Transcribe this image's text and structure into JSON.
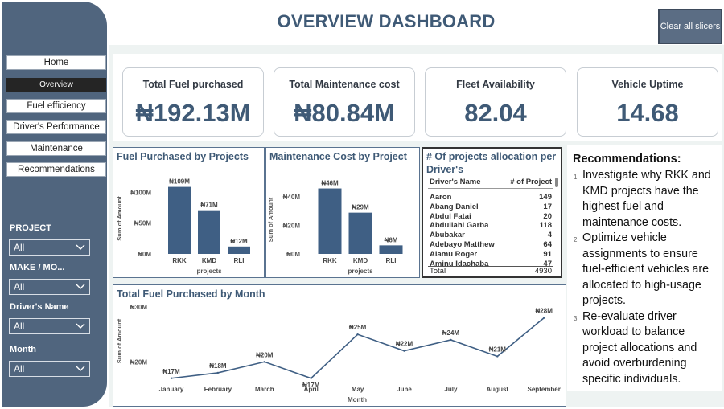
{
  "header": {
    "title": "OVERVIEW DASHBOARD",
    "clear_label": "Clear all slicers"
  },
  "nav": {
    "home": "Home",
    "overview": "Overview",
    "fuel": "Fuel efficiency",
    "drivers": "Driver's Performance",
    "maintenance": "Maintenance",
    "recommendations": "Recommendations"
  },
  "slicers": {
    "project_label": "PROJECT",
    "project_value": "All",
    "make_label": "MAKE / MO...",
    "make_value": "All",
    "driver_label": "Driver's Name",
    "driver_value": "All",
    "month_label": "Month",
    "month_value": "All"
  },
  "kpis": {
    "fuel_label": "Total Fuel purchased",
    "fuel_value": "₦192.13M",
    "maint_label": "Total Maintenance cost",
    "maint_value": "₦80.84M",
    "fleet_label": "Fleet Availability",
    "fleet_value": "82.04",
    "uptime_label": "Vehicle Uptime",
    "uptime_value": "14.68"
  },
  "colors": {
    "bar": "#3f5f84",
    "accent": "#3f5a76",
    "sidebar": "#50657e"
  },
  "chart_data": [
    {
      "type": "bar",
      "title": "Fuel Purchased by Projects",
      "xlabel": "projects",
      "ylabel": "Sum of Amount",
      "categories": [
        "RKK",
        "KMD",
        "RLI"
      ],
      "values": [
        109,
        71,
        12
      ],
      "data_labels": [
        "₦109M",
        "₦71M",
        "₦12M"
      ],
      "y_ticks": [
        0,
        50,
        100
      ],
      "y_tick_labels": [
        "₦0M",
        "₦50M",
        "₦100M"
      ],
      "ylim": [
        0,
        115
      ]
    },
    {
      "type": "bar",
      "title": "Maintenance Cost by Project",
      "xlabel": "projects",
      "ylabel": "Sum of Amount",
      "categories": [
        "RKK",
        "KMD",
        "RLI"
      ],
      "values": [
        46,
        29,
        6
      ],
      "data_labels": [
        "₦46M",
        "₦29M",
        "₦6M"
      ],
      "y_ticks": [
        0,
        20,
        40
      ],
      "y_tick_labels": [
        "₦0M",
        "₦20M",
        "₦40M"
      ],
      "ylim": [
        0,
        48
      ]
    },
    {
      "type": "line",
      "title": "Total Fuel Purchased by Month",
      "xlabel": "Month",
      "ylabel": "Sum of Amount",
      "categories": [
        "January",
        "February",
        "March",
        "April",
        "May",
        "June",
        "July",
        "August",
        "September"
      ],
      "values": [
        17,
        18,
        20,
        17,
        25,
        22,
        24,
        21,
        28
      ],
      "data_labels": [
        "₦17M",
        "₦18M",
        "₦20M",
        "₦17M",
        "₦25M",
        "₦22M",
        "₦24M",
        "₦21M",
        "₦28M"
      ],
      "y_ticks": [
        20,
        30
      ],
      "y_tick_labels": [
        "₦20M",
        "₦30M"
      ],
      "ylim": [
        15.5,
        30
      ]
    },
    {
      "type": "table",
      "title": "# Of projects allocation per Driver's",
      "columns": [
        "Driver's Name",
        "# of Project"
      ],
      "rows": [
        [
          "Aaron",
          "149"
        ],
        [
          "Abang Daniel",
          "17"
        ],
        [
          "Abdul Fatai",
          "20"
        ],
        [
          "Abdullahi Garba",
          "118"
        ],
        [
          "Abubakar",
          "4"
        ],
        [
          "Adebayo Matthew",
          "64"
        ],
        [
          "Alamu Roger",
          "91"
        ],
        [
          "Aminu Idachaba",
          "47"
        ]
      ],
      "total_label": "Total",
      "total_value": "4930"
    }
  ],
  "recommendations": {
    "title": "Recommendations:",
    "items": [
      "Investigate why RKK and KMD projects have the highest fuel and maintenance costs.",
      "Optimize vehicle assignments to ensure fuel-efficient vehicles are allocated to high-usage projects.",
      "Re-evaluate driver workload to balance project allocations and avoid overburdening specific individuals."
    ],
    "numbers": [
      "1.",
      "2.",
      "3."
    ]
  }
}
